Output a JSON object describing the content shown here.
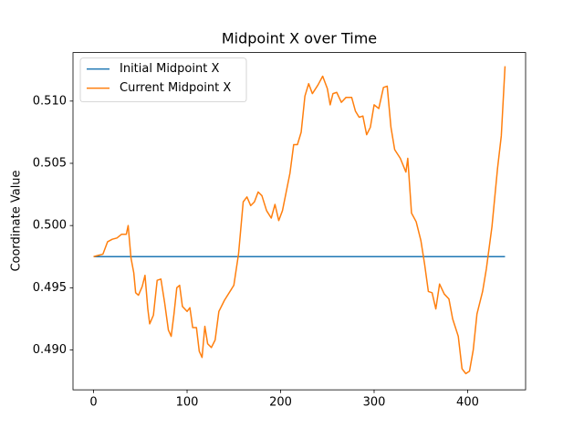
{
  "chart_data": {
    "type": "line",
    "title": "Midpoint X over Time",
    "y_label": "Coordinate Value",
    "xlim": [
      -22,
      462
    ],
    "xticks": [
      0,
      100,
      200,
      300,
      400
    ],
    "ylim": [
      0.4868,
      0.5139
    ],
    "yticks": [
      {
        "value": 0.49,
        "label": "0.490"
      },
      0.495,
      {
        "value": 0.5,
        "label": "0.500"
      },
      0.505,
      {
        "value": 0.51,
        "label": "0.510"
      }
    ],
    "legend": "upper left",
    "series": [
      {
        "name": "Initial Midpoint X",
        "color": "#1f77b4",
        "x": [
          0,
          440
        ],
        "values": [
          0.4975,
          0.4975
        ]
      },
      {
        "name": "Current Midpoint X",
        "color": "#ff7f0e",
        "x": [
          0,
          5,
          10,
          15,
          20,
          25,
          30,
          35,
          37,
          40,
          43,
          45,
          48,
          52,
          55,
          58,
          60,
          64,
          68,
          72,
          76,
          80,
          83,
          86,
          89,
          92,
          95,
          100,
          103,
          106,
          110,
          113,
          116,
          119,
          122,
          126,
          130,
          134,
          140,
          150,
          155,
          160,
          164,
          168,
          172,
          176,
          180,
          185,
          190,
          194,
          198,
          202,
          206,
          210,
          214,
          218,
          222,
          226,
          230,
          234,
          240,
          245,
          250,
          253,
          256,
          260,
          265,
          270,
          276,
          280,
          284,
          288,
          292,
          296,
          300,
          305,
          310,
          314,
          318,
          322,
          328,
          334,
          336,
          340,
          345,
          350,
          354,
          358,
          362,
          366,
          370,
          375,
          380,
          384,
          390,
          394,
          398,
          402,
          406,
          410,
          416,
          420,
          426,
          432,
          436,
          440
        ],
        "values": [
          0.4975,
          0.4976,
          0.4977,
          0.4987,
          0.4989,
          0.499,
          0.4993,
          0.4993,
          0.5,
          0.4974,
          0.4962,
          0.4946,
          0.4944,
          0.4951,
          0.496,
          0.4933,
          0.4921,
          0.4928,
          0.4956,
          0.4957,
          0.4938,
          0.4916,
          0.4911,
          0.4929,
          0.495,
          0.4952,
          0.4935,
          0.4931,
          0.4934,
          0.4918,
          0.4918,
          0.4899,
          0.4894,
          0.4919,
          0.4905,
          0.4902,
          0.4908,
          0.4931,
          0.494,
          0.4952,
          0.4977,
          0.5019,
          0.5023,
          0.5016,
          0.5019,
          0.5027,
          0.5024,
          0.5012,
          0.5006,
          0.5017,
          0.5004,
          0.5012,
          0.5027,
          0.5042,
          0.5065,
          0.5065,
          0.5075,
          0.5104,
          0.5114,
          0.5106,
          0.5113,
          0.512,
          0.511,
          0.5097,
          0.5106,
          0.5107,
          0.5099,
          0.5103,
          0.5103,
          0.5092,
          0.5087,
          0.5088,
          0.5073,
          0.5079,
          0.5097,
          0.5094,
          0.5111,
          0.5112,
          0.5079,
          0.5061,
          0.5054,
          0.5043,
          0.5054,
          0.501,
          0.5003,
          0.4988,
          0.4969,
          0.4947,
          0.4946,
          0.4933,
          0.4953,
          0.4945,
          0.4941,
          0.4925,
          0.4911,
          0.4885,
          0.4881,
          0.4883,
          0.49,
          0.4929,
          0.4947,
          0.4965,
          0.4999,
          0.5046,
          0.5072,
          0.5128
        ]
      }
    ]
  }
}
